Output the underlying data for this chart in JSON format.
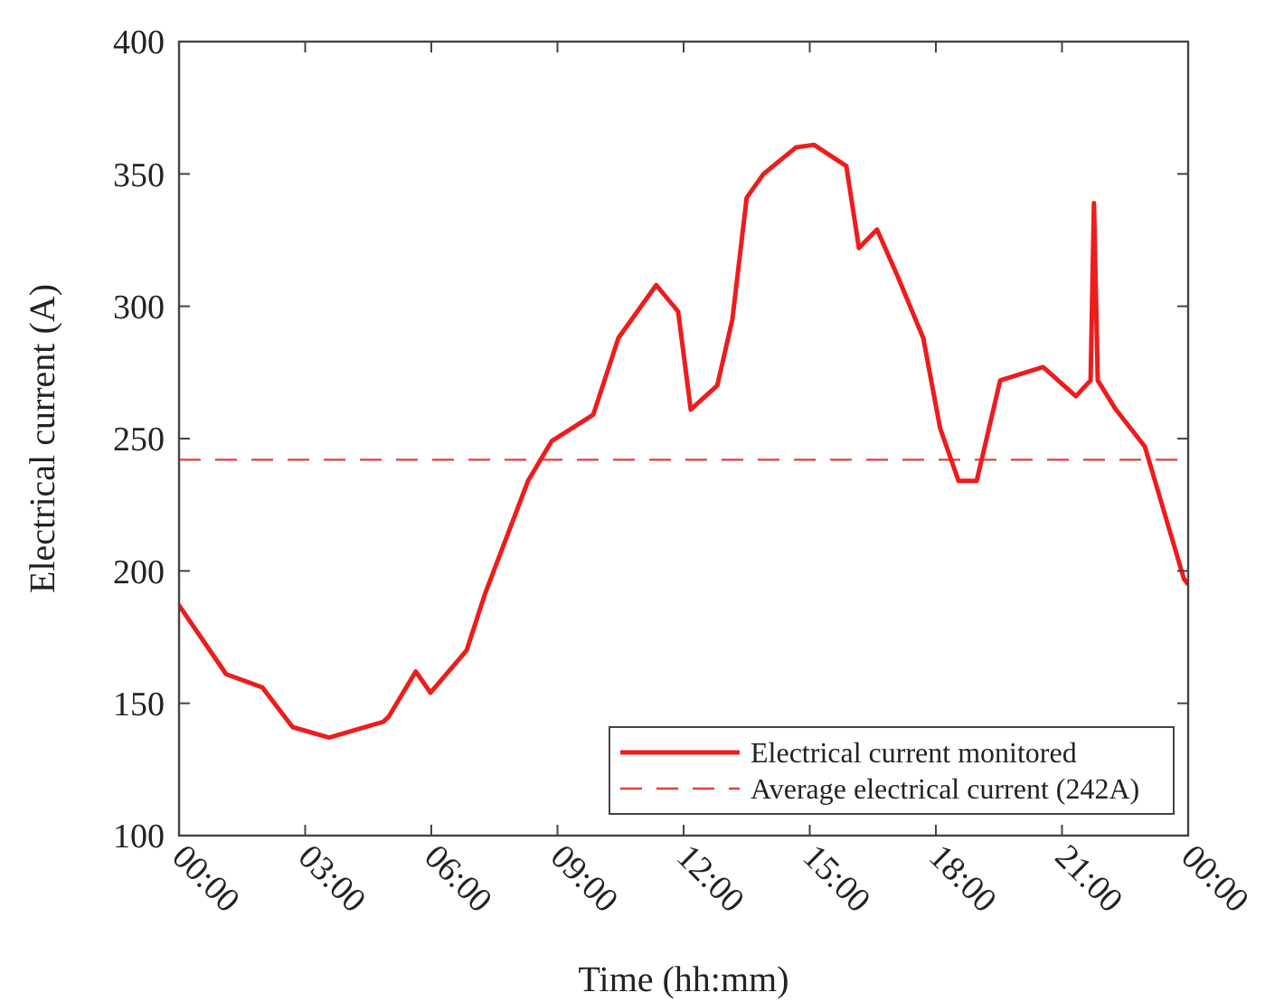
{
  "chart_data": {
    "type": "line",
    "xlabel": "Time (hh:mm)",
    "ylabel": "Electrical current (A)",
    "xlim": [
      0,
      24
    ],
    "xticks": [
      {
        "value": 0,
        "label": "00:00"
      },
      {
        "value": 3,
        "label": "03:00"
      },
      {
        "value": 6,
        "label": "06:00"
      },
      {
        "value": 9,
        "label": "09:00"
      },
      {
        "value": 12,
        "label": "12:00"
      },
      {
        "value": 15,
        "label": "15:00"
      },
      {
        "value": 18,
        "label": "18:00"
      },
      {
        "value": 21,
        "label": "21:00"
      },
      {
        "value": 24,
        "label": "00:00"
      }
    ],
    "ylim": [
      100,
      400
    ],
    "yticks": [
      100,
      150,
      200,
      250,
      300,
      350,
      400
    ],
    "grid": false,
    "legend": "bottom right",
    "line_style": "solid",
    "marker": "none",
    "series": [
      {
        "name": "Electrical current monitored",
        "color": "#ee1c1c",
        "x": [
          0,
          1.12,
          1.98,
          2.7,
          3.57,
          4.86,
          4.99,
          5.63,
          5.98,
          6.84,
          7.27,
          8.3,
          8.86,
          9.85,
          10.45,
          11.35,
          11.87,
          12.17,
          12.8,
          13.16,
          13.5,
          13.9,
          14.67,
          15.1,
          15.87,
          16.17,
          16.6,
          17.1,
          17.7,
          18.1,
          18.54,
          18.97,
          19.53,
          20.55,
          21.33,
          21.68,
          21.76,
          21.85,
          22.28,
          22.97,
          23.9,
          24
        ],
        "values": [
          187,
          161,
          156,
          141,
          137,
          143,
          145,
          162,
          154,
          170,
          191,
          234,
          249,
          259,
          288,
          308,
          298,
          261,
          270,
          295,
          341,
          350,
          360,
          361,
          353,
          322,
          329,
          311,
          288,
          254,
          234,
          234,
          272,
          277,
          266,
          272,
          339,
          272,
          261,
          247,
          197,
          195
        ]
      }
    ],
    "ref_lines": [
      {
        "axis": "y",
        "value": 242,
        "label": "Average electrical current (242A)",
        "color": "#e0403a",
        "line_style": "dashed"
      }
    ]
  }
}
